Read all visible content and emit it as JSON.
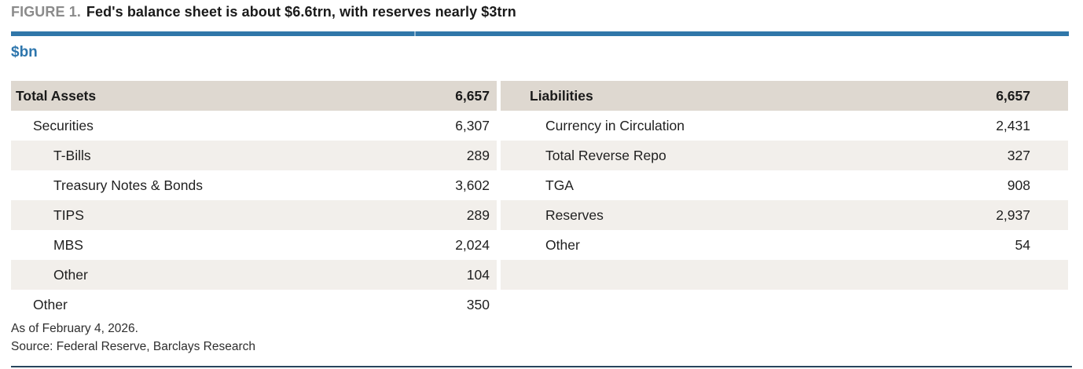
{
  "figure": {
    "label": "FIGURE 1.",
    "headline": "Fed's balance sheet is about $6.6trn, with reserves nearly $3trn",
    "units": "$bn",
    "footnote": "As of February 4, 2026.",
    "source": "Source: Federal Reserve, Barclays Research"
  },
  "colors": {
    "accent_blue": "#3077a9",
    "units_blue": "#2e76ad",
    "header_row_bg": "#ded8d0",
    "stripe_bg": "#f2efeb",
    "figure_label_gray": "#8b8b8b",
    "bottom_rule_navy": "#27455d"
  },
  "assets": {
    "header": {
      "label": "Total Assets",
      "value": "6,657"
    },
    "rows": [
      {
        "label": "Securities",
        "value": "6,307",
        "indent": 1
      },
      {
        "label": "T-Bills",
        "value": "289",
        "indent": 2
      },
      {
        "label": "Treasury Notes & Bonds",
        "value": "3,602",
        "indent": 2
      },
      {
        "label": "TIPS",
        "value": "289",
        "indent": 2
      },
      {
        "label": "MBS",
        "value": "2,024",
        "indent": 2
      },
      {
        "label": "Other",
        "value": "104",
        "indent": 2
      },
      {
        "label": "Other",
        "value": "350",
        "indent": 1
      }
    ]
  },
  "liabilities": {
    "header": {
      "label": "Liabilities",
      "value": "6,657"
    },
    "rows": [
      {
        "label": "Currency in Circulation",
        "value": "2,431",
        "indent": 1
      },
      {
        "label": "Total Reverse Repo",
        "value": "327",
        "indent": 1
      },
      {
        "label": "TGA",
        "value": "908",
        "indent": 1
      },
      {
        "label": "Reserves",
        "value": "2,937",
        "indent": 1
      },
      {
        "label": "Other",
        "value": "54",
        "indent": 1
      },
      {
        "label": "",
        "value": "",
        "indent": 1
      },
      {
        "label": "",
        "value": "",
        "indent": 1
      }
    ]
  },
  "chart_data": {
    "type": "table",
    "title": "Fed's balance sheet is about $6.6trn, with reserves nearly $3trn",
    "units": "$bn",
    "assets": {
      "total_label": "Total Assets",
      "total": 6657,
      "rows": [
        [
          "Securities",
          6307
        ],
        [
          "T-Bills",
          289
        ],
        [
          "Treasury Notes & Bonds",
          3602
        ],
        [
          "TIPS",
          289
        ],
        [
          "MBS",
          2024
        ],
        [
          "Other",
          104
        ],
        [
          "Other",
          350
        ]
      ]
    },
    "liabilities": {
      "total_label": "Liabilities",
      "total": 6657,
      "rows": [
        [
          "Currency in Circulation",
          2431
        ],
        [
          "Total Reverse Repo",
          327
        ],
        [
          "TGA",
          908
        ],
        [
          "Reserves",
          2937
        ],
        [
          "Other",
          54
        ]
      ]
    },
    "as_of": "As of February 4, 2026.",
    "source": "Source: Federal Reserve, Barclays Research"
  }
}
